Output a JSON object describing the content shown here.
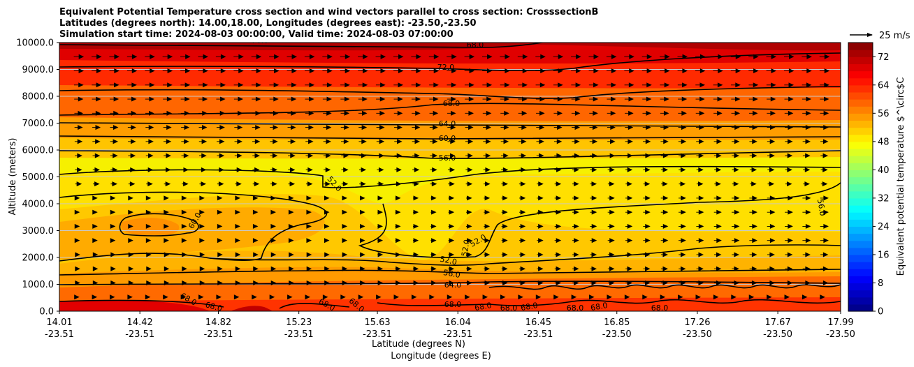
{
  "chart_data": {
    "type": "heatmap",
    "title_lines": [
      "Equivalent Potential Temperature cross section and wind vectors parallel to cross section: CrosssectionB",
      "Latitudes (degrees north): 14.00,18.00, Longitudes (degrees east): -23.50,-23.50",
      "Simulation start time: 2024-08-03 00:00:00, Valid time: 2024-08-03 07:00:00"
    ],
    "ylabel": "Altitude (meters)",
    "xlabel_lat": "Latitude (degrees N)",
    "xlabel_lon": "Longitude (degrees E)",
    "ylim": [
      0,
      10000
    ],
    "yticks": [
      "0.0",
      "1000.0",
      "2000.0",
      "3000.0",
      "4000.0",
      "5000.0",
      "6000.0",
      "7000.0",
      "8000.0",
      "9000.0",
      "10000.0"
    ],
    "xlim": [
      14.01,
      17.99
    ],
    "xtick_lat": [
      "14.01",
      "14.42",
      "14.82",
      "15.23",
      "15.63",
      "16.04",
      "16.45",
      "16.85",
      "17.26",
      "17.67",
      "17.99"
    ],
    "xtick_lon": [
      "-23.51",
      "-23.51",
      "-23.51",
      "-23.51",
      "-23.51",
      "-23.51",
      "-23.51",
      "-23.50",
      "-23.50",
      "-23.50",
      "-23.50"
    ],
    "grid_horizontal": true,
    "colorbar": {
      "label": "Equivalent potential temperature $^\\circ$C",
      "min": 0,
      "max": 76,
      "step": 2,
      "ticks": [
        "0",
        "8",
        "16",
        "24",
        "32",
        "40",
        "48",
        "56",
        "64",
        "72"
      ],
      "colormap": "jet"
    },
    "quiver_key": "25 m/s",
    "contour_labels": [
      "76.0",
      "68.0",
      "72.0",
      "68.0",
      "64.0",
      "60.0",
      "56.0",
      "52.0",
      "60.0",
      "56.0",
      "52.0",
      "52.0",
      "52.0",
      "56.0",
      "64.0",
      "68.0",
      "68.0",
      "68.0",
      "68.0",
      "68.0",
      "68.0",
      "68.0",
      "68.0",
      "68.0",
      "68.0",
      "68.0"
    ]
  }
}
